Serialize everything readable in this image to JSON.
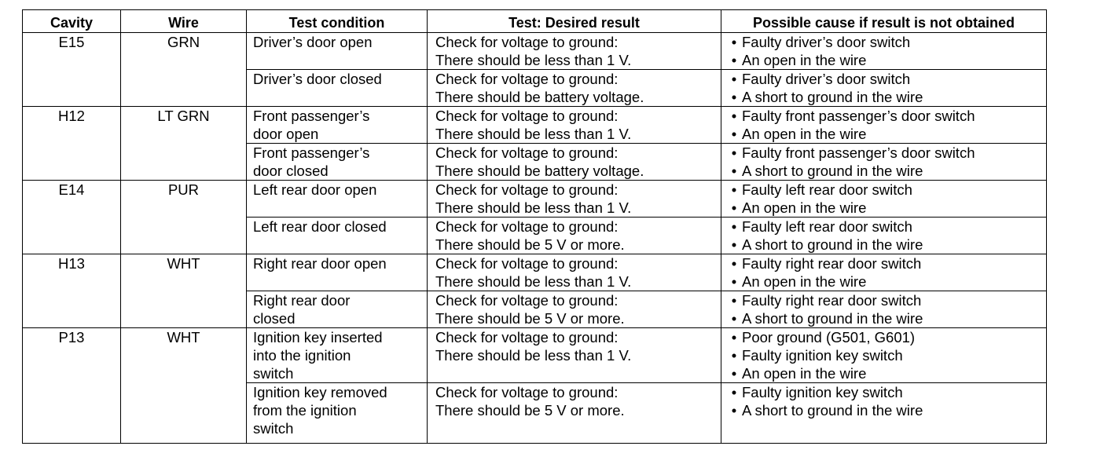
{
  "headers": [
    "Cavity",
    "Wire",
    "Test condition",
    "Test: Desired result",
    "Possible cause if result is not obtained"
  ],
  "bullet": "•",
  "groups": [
    {
      "cavity": "E15",
      "wire": "GRN",
      "tests": [
        {
          "condition": [
            "Driver’s door open"
          ],
          "result": [
            "Check for voltage to ground:",
            "There should be less than 1 V."
          ],
          "causes": [
            "Faulty driver’s door switch",
            "An open in the wire"
          ]
        },
        {
          "condition": [
            "Driver’s door closed"
          ],
          "result": [
            "Check for voltage to ground:",
            "There should be battery voltage."
          ],
          "causes": [
            "Faulty driver’s door switch",
            "A short to ground in the wire"
          ]
        }
      ]
    },
    {
      "cavity": "H12",
      "wire": "LT GRN",
      "tests": [
        {
          "condition": [
            "Front passenger’s",
            "door open"
          ],
          "result": [
            "Check for voltage to ground:",
            "There should be less than 1 V."
          ],
          "causes": [
            "Faulty front passenger’s door switch",
            "An open in the wire"
          ]
        },
        {
          "condition": [
            "Front passenger’s",
            "door closed"
          ],
          "result": [
            "Check for voltage to ground:",
            "There should be battery voltage."
          ],
          "causes": [
            "Faulty front passenger’s door switch",
            "A short to ground in the wire"
          ]
        }
      ]
    },
    {
      "cavity": "E14",
      "wire": "PUR",
      "tests": [
        {
          "condition": [
            "Left rear door open"
          ],
          "result": [
            "Check for voltage to ground:",
            "There should be less than 1 V."
          ],
          "causes": [
            "Faulty left rear door switch",
            "An open in the wire"
          ]
        },
        {
          "condition": [
            "Left rear door closed"
          ],
          "result": [
            "Check for voltage to ground:",
            "There should be 5 V or more."
          ],
          "causes": [
            "Faulty left rear door switch",
            "A short to ground in the wire"
          ]
        }
      ]
    },
    {
      "cavity": "H13",
      "wire": "WHT",
      "tests": [
        {
          "condition": [
            "Right rear door open"
          ],
          "result": [
            "Check for voltage to ground:",
            "There should be less than 1 V."
          ],
          "causes": [
            "Faulty right rear door switch",
            "An open in the wire"
          ]
        },
        {
          "condition": [
            "Right rear door",
            "closed"
          ],
          "result": [
            "Check for voltage to ground:",
            "There should be 5 V or more."
          ],
          "causes": [
            "Faulty right rear door switch",
            "A short to ground in the wire"
          ]
        }
      ]
    },
    {
      "cavity": "P13",
      "wire": "WHT",
      "tests": [
        {
          "condition": [
            "Ignition key inserted",
            "into the ignition",
            "switch"
          ],
          "result": [
            "Check for voltage to ground:",
            "There should be less than 1 V."
          ],
          "causes": [
            "Poor ground (G501, G601)",
            "Faulty ignition key switch",
            "An open in the wire"
          ]
        },
        {
          "condition": [
            "Ignition key removed",
            "from the ignition",
            "switch"
          ],
          "result": [
            "Check for voltage to ground:",
            "There should be 5 V or more."
          ],
          "causes": [
            "Faulty ignition key switch",
            "A short to ground in the wire"
          ]
        }
      ]
    }
  ]
}
